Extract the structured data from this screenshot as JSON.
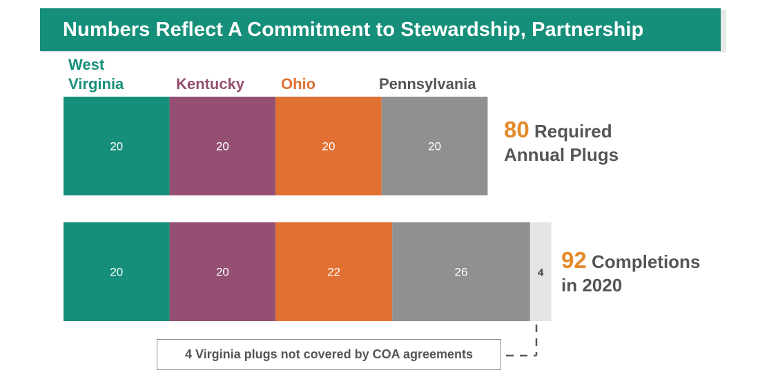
{
  "title": "Numbers Reflect A Commitment to Stewardship, Partnership",
  "colors": {
    "title_bg": "#168f7a",
    "West Virginia": "#168f7a",
    "Kentucky": "#944f72",
    "Ohio": "#e07132",
    "Pennsylvania": "#909090",
    "Virginia": "#e4e4e4",
    "accent_number": "#e48a2a",
    "text_gray": "#555555"
  },
  "legend": {
    "west_virginia_line1": "West",
    "west_virginia_line2": "Virginia",
    "kentucky": "Kentucky",
    "ohio": "Ohio",
    "pennsylvania": "Pennsylvania"
  },
  "totals": {
    "required_number": "80",
    "required_text1": "Required",
    "required_text2": "Annual Plugs",
    "completions_number": "92",
    "completions_text1": "Completions",
    "completions_text2": "in 2020"
  },
  "note": "4 Virginia plugs not covered by COA agreements",
  "chart_data": {
    "type": "bar",
    "orientation": "horizontal-stacked",
    "categories": [
      "Required Annual Plugs",
      "Completions in 2020"
    ],
    "series": [
      {
        "name": "West Virginia",
        "values": [
          20,
          20
        ]
      },
      {
        "name": "Kentucky",
        "values": [
          20,
          20
        ]
      },
      {
        "name": "Ohio",
        "values": [
          20,
          22
        ]
      },
      {
        "name": "Pennsylvania",
        "values": [
          20,
          26
        ]
      },
      {
        "values": [
          0,
          4
        ]
      }
    ],
    "title": "Numbers Reflect A Commitment to Stewardship, Partnership",
    "legend": "top",
    "grid": false
  }
}
